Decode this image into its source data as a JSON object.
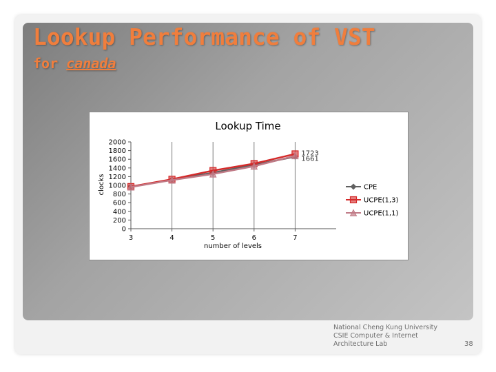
{
  "slide": {
    "title": "Lookup Performance of VST",
    "subtitle_prefix": "for ",
    "subtitle_link": "canada",
    "footer_lines": [
      "National Cheng Kung University",
      "CSIE Computer & Internet",
      "Architecture Lab"
    ],
    "page_number": "38"
  },
  "chart_data": {
    "type": "line",
    "title": "Lookup Time",
    "xlabel": "number of levels",
    "ylabel": "clocks",
    "categories": [
      "3",
      "4",
      "5",
      "6",
      "7"
    ],
    "ylim": [
      0,
      2000
    ],
    "yticks": [
      0,
      200,
      400,
      600,
      800,
      1000,
      1200,
      1400,
      1600,
      1800,
      2000
    ],
    "grid": "vertical",
    "legend_position": "right",
    "series": [
      {
        "name": "CPE",
        "values": [
          970,
          1130,
          1290,
          1470,
          1661
        ],
        "color": "#606060",
        "marker": "diamond"
      },
      {
        "name": "UCPE(1,3)",
        "values": [
          970,
          1140,
          1340,
          1500,
          1723
        ],
        "color": "#d42a2a",
        "marker": "square"
      },
      {
        "name": "UCPE(1,1)",
        "values": [
          960,
          1120,
          1260,
          1440,
          1680
        ],
        "color": "#c07a86",
        "marker": "triangle"
      }
    ],
    "annotations": [
      {
        "text": "1723",
        "series": "UCPE(1,3)",
        "category": "7"
      },
      {
        "text": "1661",
        "series": "CPE",
        "category": "7"
      }
    ]
  }
}
